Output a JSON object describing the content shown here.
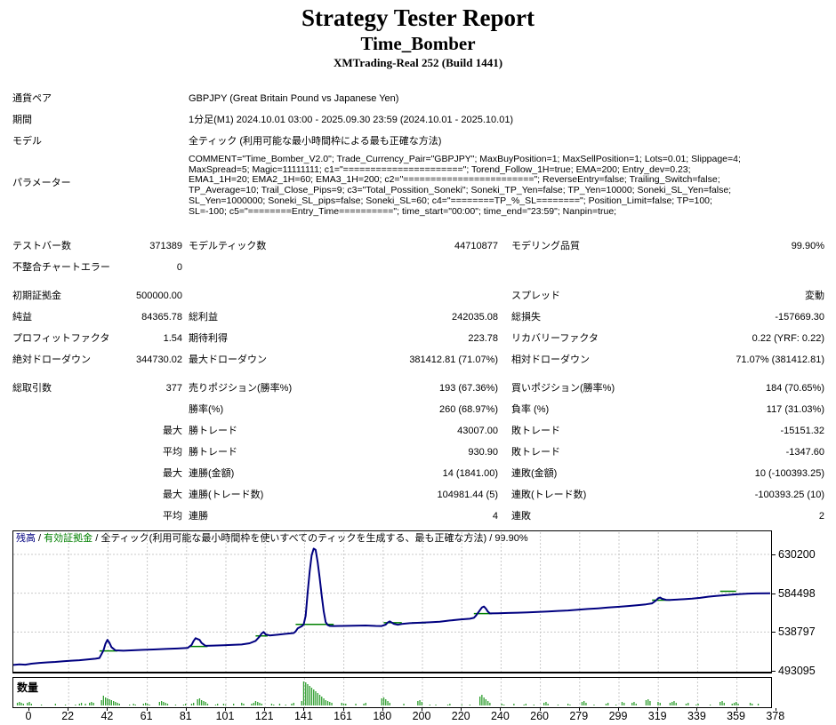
{
  "header": {
    "title": "Strategy Tester Report",
    "ea_name": "Time_Bomber",
    "server": "XMTrading-Real 252 (Build 1441)"
  },
  "info": {
    "rows": [
      {
        "label": "通貨ペア",
        "value": "GBPJPY (Great Britain Pound vs Japanese Yen)"
      },
      {
        "label": "期間",
        "value": "1分足(M1) 2024.10.01 03:00 - 2025.09.30 23:59 (2024.10.01 - 2025.10.01)"
      },
      {
        "label": "モデル",
        "value": "全ティック (利用可能な最小時間枠による最も正確な方法)"
      }
    ],
    "parameters_label": "パラメーター",
    "parameters_lines": [
      "COMMENT=\"Time_Bomber_V2.0\"; Trade_Currency_Pair=\"GBPJPY\"; MaxBuyPosition=1; MaxSellPosition=1; Lots=0.01; Slippage=4;",
      "MaxSpread=5; Magic=11111111; c1=\"======================\"; Torend_Follow_1H=true; EMA=200; Entry_dev=0.23;",
      "EMA1_1H=20; EMA2_1H=60; EMA3_1H=200; c2=\"========================\"; ReverseEntry=false; Trailing_Switch=false;",
      "TP_Average=10; Trail_Close_Pips=9; c3=\"Total_Possition_Soneki\"; Soneki_TP_Yen=false; TP_Yen=10000; Soneki_SL_Yen=false;",
      "SL_Yen=1000000; Soneki_SL_pips=false; Soneki_SL=60; c4=\"========TP_%_SL========\"; Position_Limit=false; TP=100;",
      "SL=-100; c5=\"========Entry_Time==========\"; time_start=\"00:00\"; time_end=\"23:59\"; Nanpin=true;"
    ]
  },
  "stats": {
    "rows": [
      {
        "sp": 20,
        "c": [
          "テストバー数",
          "371389",
          "モデルティック数",
          "44710877",
          "モデリング品質",
          "99.90%"
        ]
      },
      {
        "c": [
          "不整合チャートエラー",
          "0",
          "",
          "",
          "",
          ""
        ]
      },
      {
        "sp": 8,
        "c": [
          "初期証拠金",
          "500000.00",
          "",
          "",
          "スプレッド",
          "変動"
        ]
      },
      {
        "c": [
          "純益",
          "84365.78",
          "総利益",
          "242035.08",
          "総損失",
          "-157669.30"
        ]
      },
      {
        "c": [
          "プロフィットファクタ",
          "1.54",
          "期待利得",
          "223.78",
          "リカバリーファクタ",
          "0.22 (YRF: 0.22)"
        ]
      },
      {
        "c": [
          "絶対ドローダウン",
          "344730.02",
          "最大ドローダウン",
          "381412.81 (71.07%)",
          "相対ドローダウン",
          "71.07% (381412.81)"
        ]
      },
      {
        "sp": 8,
        "c": [
          "総取引数",
          "377",
          "売りポジション(勝率%)",
          "193 (67.36%)",
          "買いポジション(勝率%)",
          "184 (70.65%)"
        ]
      },
      {
        "c": [
          "",
          "",
          "勝率(%)",
          "260 (68.97%)",
          "負率 (%)",
          "117 (31.03%)"
        ]
      },
      {
        "c": [
          "",
          "最大",
          "勝トレード",
          "43007.00",
          "敗トレード",
          "-15151.32"
        ]
      },
      {
        "c": [
          "",
          "平均",
          "勝トレード",
          "930.90",
          "敗トレード",
          "-1347.60"
        ]
      },
      {
        "c": [
          "",
          "最大",
          "連勝(金額)",
          "14 (1841.00)",
          "連敗(金額)",
          "10 (-100393.25)"
        ]
      },
      {
        "c": [
          "",
          "最大",
          "連勝(トレード数)",
          "104981.44 (5)",
          "連敗(トレード数)",
          "-100393.25 (10)"
        ]
      },
      {
        "c": [
          "",
          "平均",
          "連勝",
          "4",
          "連敗",
          "2"
        ]
      }
    ]
  },
  "chart_data": {
    "type": "line",
    "legend": {
      "balance": "残高",
      "equity": "有効証拠金",
      "model": "全ティック(利用可能な最小時間枠を使いすべてのティックを生成する、最も正確な方法)",
      "quality": "99.90%",
      "separator": " / "
    },
    "xlabel": "取引数",
    "ylabel": "残高",
    "y_ticks": [
      630200,
      584498,
      538797,
      493095
    ],
    "x_ticks": [
      0,
      22,
      42,
      61,
      81,
      101,
      121,
      141,
      161,
      180,
      200,
      220,
      240,
      260,
      279,
      299,
      319,
      339,
      359,
      378
    ],
    "x_max": 378,
    "y_range": [
      493095,
      630200
    ],
    "balance": [
      [
        0,
        500000
      ],
      [
        3,
        500600
      ],
      [
        6,
        500300
      ],
      [
        9,
        501500
      ],
      [
        13,
        502400
      ],
      [
        17,
        503000
      ],
      [
        21,
        503600
      ],
      [
        25,
        504300
      ],
      [
        29,
        505000
      ],
      [
        33,
        505600
      ],
      [
        37,
        506400
      ],
      [
        41,
        507300
      ],
      [
        43,
        508200
      ],
      [
        45,
        517000
      ],
      [
        46,
        525000
      ],
      [
        47,
        529500
      ],
      [
        48,
        526000
      ],
      [
        49,
        521000
      ],
      [
        51,
        517200
      ],
      [
        55,
        516800
      ],
      [
        60,
        517300
      ],
      [
        65,
        517800
      ],
      [
        70,
        518200
      ],
      [
        76,
        518800
      ],
      [
        82,
        519400
      ],
      [
        87,
        520000
      ],
      [
        89,
        523500
      ],
      [
        90,
        528000
      ],
      [
        91,
        531500
      ],
      [
        93,
        529500
      ],
      [
        94,
        526000
      ],
      [
        96,
        522500
      ],
      [
        100,
        522800
      ],
      [
        105,
        523200
      ],
      [
        110,
        523700
      ],
      [
        114,
        524100
      ],
      [
        118,
        525500
      ],
      [
        121,
        528400
      ],
      [
        123,
        533500
      ],
      [
        124,
        537000
      ],
      [
        125,
        538800
      ],
      [
        126,
        536000
      ],
      [
        128,
        534800
      ],
      [
        132,
        535600
      ],
      [
        136,
        536600
      ],
      [
        140,
        537600
      ],
      [
        141,
        539500
      ],
      [
        142,
        543000
      ],
      [
        144,
        545500
      ],
      [
        145,
        547500
      ],
      [
        146,
        558000
      ],
      [
        147,
        585000
      ],
      [
        148,
        610000
      ],
      [
        149,
        629000
      ],
      [
        150,
        637000
      ],
      [
        151,
        635500
      ],
      [
        152,
        621000
      ],
      [
        153,
        602000
      ],
      [
        154,
        582000
      ],
      [
        155,
        563000
      ],
      [
        156,
        550500
      ],
      [
        157,
        547000
      ],
      [
        158,
        546000
      ],
      [
        160,
        545800
      ],
      [
        164,
        546000
      ],
      [
        170,
        546300
      ],
      [
        176,
        546500
      ],
      [
        181,
        546000
      ],
      [
        184,
        545800
      ],
      [
        186,
        547500
      ],
      [
        187,
        550000
      ],
      [
        188,
        551300
      ],
      [
        190,
        548500
      ],
      [
        192,
        547300
      ],
      [
        194,
        548300
      ],
      [
        198,
        549200
      ],
      [
        203,
        549700
      ],
      [
        208,
        550200
      ],
      [
        213,
        551000
      ],
      [
        218,
        552300
      ],
      [
        223,
        553500
      ],
      [
        228,
        554400
      ],
      [
        230,
        555500
      ],
      [
        231,
        558000
      ],
      [
        233,
        564500
      ],
      [
        234,
        567600
      ],
      [
        235,
        568900
      ],
      [
        236,
        566500
      ],
      [
        237,
        562800
      ],
      [
        238,
        560700
      ],
      [
        242,
        560900
      ],
      [
        247,
        561200
      ],
      [
        252,
        561500
      ],
      [
        257,
        561900
      ],
      [
        262,
        562400
      ],
      [
        267,
        563000
      ],
      [
        272,
        563600
      ],
      [
        277,
        564200
      ],
      [
        282,
        565000
      ],
      [
        287,
        565900
      ],
      [
        292,
        566700
      ],
      [
        297,
        567600
      ],
      [
        302,
        568500
      ],
      [
        307,
        569400
      ],
      [
        312,
        570400
      ],
      [
        316,
        571400
      ],
      [
        319,
        572500
      ],
      [
        321,
        576000
      ],
      [
        322,
        578500
      ],
      [
        323,
        579400
      ],
      [
        324,
        578000
      ],
      [
        326,
        576700
      ],
      [
        328,
        576500
      ],
      [
        331,
        576900
      ],
      [
        335,
        577400
      ],
      [
        339,
        578100
      ],
      [
        343,
        579000
      ],
      [
        347,
        580400
      ],
      [
        351,
        581300
      ],
      [
        355,
        582100
      ],
      [
        359,
        582900
      ],
      [
        363,
        583500
      ],
      [
        367,
        584000
      ],
      [
        371,
        584300
      ],
      [
        378,
        584500
      ]
    ],
    "equity_segments": [
      [
        43,
        52,
        516500
      ],
      [
        88,
        97,
        521800
      ],
      [
        121,
        127,
        534200
      ],
      [
        141,
        160,
        547800
      ],
      [
        185,
        194,
        549800
      ],
      [
        199,
        206,
        549600
      ],
      [
        230,
        239,
        560500
      ],
      [
        319,
        328,
        576300
      ],
      [
        353,
        361,
        586800
      ]
    ],
    "volume": {
      "label": "数量",
      "bars": [
        [
          2,
          3
        ],
        [
          3,
          4
        ],
        [
          4,
          3
        ],
        [
          5,
          2
        ],
        [
          7,
          3
        ],
        [
          8,
          4
        ],
        [
          9,
          2
        ],
        [
          14,
          1
        ],
        [
          21,
          2
        ],
        [
          26,
          1
        ],
        [
          31,
          1
        ],
        [
          33,
          2
        ],
        [
          34,
          3
        ],
        [
          36,
          2
        ],
        [
          38,
          3
        ],
        [
          39,
          4
        ],
        [
          40,
          3
        ],
        [
          44,
          6
        ],
        [
          45,
          11
        ],
        [
          46,
          9
        ],
        [
          47,
          8
        ],
        [
          48,
          7
        ],
        [
          49,
          6
        ],
        [
          50,
          5
        ],
        [
          51,
          4
        ],
        [
          52,
          3
        ],
        [
          53,
          2
        ],
        [
          58,
          1
        ],
        [
          60,
          2
        ],
        [
          61,
          1
        ],
        [
          65,
          2
        ],
        [
          66,
          3
        ],
        [
          67,
          2
        ],
        [
          68,
          1
        ],
        [
          73,
          4
        ],
        [
          74,
          5
        ],
        [
          75,
          4
        ],
        [
          76,
          3
        ],
        [
          77,
          2
        ],
        [
          81,
          1
        ],
        [
          85,
          1
        ],
        [
          86,
          2
        ],
        [
          89,
          2
        ],
        [
          90,
          3
        ],
        [
          92,
          7
        ],
        [
          93,
          8
        ],
        [
          94,
          6
        ],
        [
          95,
          5
        ],
        [
          96,
          4
        ],
        [
          97,
          2
        ],
        [
          101,
          1
        ],
        [
          102,
          2
        ],
        [
          105,
          2
        ],
        [
          106,
          1
        ],
        [
          110,
          2
        ],
        [
          114,
          3
        ],
        [
          115,
          2
        ],
        [
          119,
          2
        ],
        [
          120,
          3
        ],
        [
          121,
          5
        ],
        [
          122,
          4
        ],
        [
          123,
          3
        ],
        [
          124,
          2
        ],
        [
          129,
          2
        ],
        [
          130,
          1
        ],
        [
          133,
          2
        ],
        [
          136,
          1
        ],
        [
          139,
          2
        ],
        [
          140,
          3
        ],
        [
          144,
          5
        ],
        [
          145,
          27
        ],
        [
          146,
          26
        ],
        [
          147,
          24
        ],
        [
          148,
          22
        ],
        [
          149,
          20
        ],
        [
          150,
          18
        ],
        [
          151,
          16
        ],
        [
          152,
          14
        ],
        [
          153,
          12
        ],
        [
          154,
          10
        ],
        [
          155,
          8
        ],
        [
          156,
          6
        ],
        [
          157,
          5
        ],
        [
          158,
          4
        ],
        [
          159,
          3
        ],
        [
          164,
          3
        ],
        [
          165,
          2
        ],
        [
          166,
          2
        ],
        [
          171,
          2
        ],
        [
          175,
          2
        ],
        [
          176,
          3
        ],
        [
          184,
          8
        ],
        [
          185,
          9
        ],
        [
          186,
          7
        ],
        [
          187,
          5
        ],
        [
          188,
          3
        ],
        [
          195,
          2
        ],
        [
          202,
          5
        ],
        [
          203,
          6
        ],
        [
          204,
          4
        ],
        [
          208,
          1
        ],
        [
          211,
          1
        ],
        [
          217,
          1
        ],
        [
          218,
          2
        ],
        [
          224,
          1
        ],
        [
          228,
          1
        ],
        [
          233,
          10
        ],
        [
          234,
          12
        ],
        [
          235,
          9
        ],
        [
          236,
          7
        ],
        [
          237,
          5
        ],
        [
          238,
          3
        ],
        [
          244,
          2
        ],
        [
          245,
          1
        ],
        [
          250,
          2
        ],
        [
          255,
          1
        ],
        [
          256,
          2
        ],
        [
          260,
          1
        ],
        [
          265,
          3
        ],
        [
          266,
          4
        ],
        [
          267,
          2
        ],
        [
          272,
          1
        ],
        [
          277,
          2
        ],
        [
          278,
          1
        ],
        [
          284,
          4
        ],
        [
          285,
          5
        ],
        [
          286,
          3
        ],
        [
          290,
          1
        ],
        [
          296,
          2
        ],
        [
          297,
          3
        ],
        [
          301,
          1
        ],
        [
          304,
          4
        ],
        [
          305,
          3
        ],
        [
          309,
          3
        ],
        [
          310,
          4
        ],
        [
          311,
          2
        ],
        [
          316,
          6
        ],
        [
          317,
          7
        ],
        [
          318,
          5
        ],
        [
          322,
          4
        ],
        [
          323,
          3
        ],
        [
          328,
          3
        ],
        [
          329,
          4
        ],
        [
          330,
          5
        ],
        [
          331,
          3
        ],
        [
          336,
          2
        ],
        [
          337,
          3
        ],
        [
          341,
          1
        ],
        [
          342,
          2
        ],
        [
          348,
          1
        ],
        [
          353,
          4
        ],
        [
          354,
          5
        ],
        [
          355,
          3
        ],
        [
          359,
          2
        ],
        [
          360,
          3
        ],
        [
          361,
          4
        ],
        [
          362,
          2
        ],
        [
          368,
          3
        ],
        [
          369,
          2
        ],
        [
          372,
          2
        ]
      ]
    },
    "colors": {
      "balance": "#000080",
      "equity": "#008000",
      "volume": "#2f9e2f",
      "grid": "#c9c9c9",
      "border": "#000000"
    }
  }
}
